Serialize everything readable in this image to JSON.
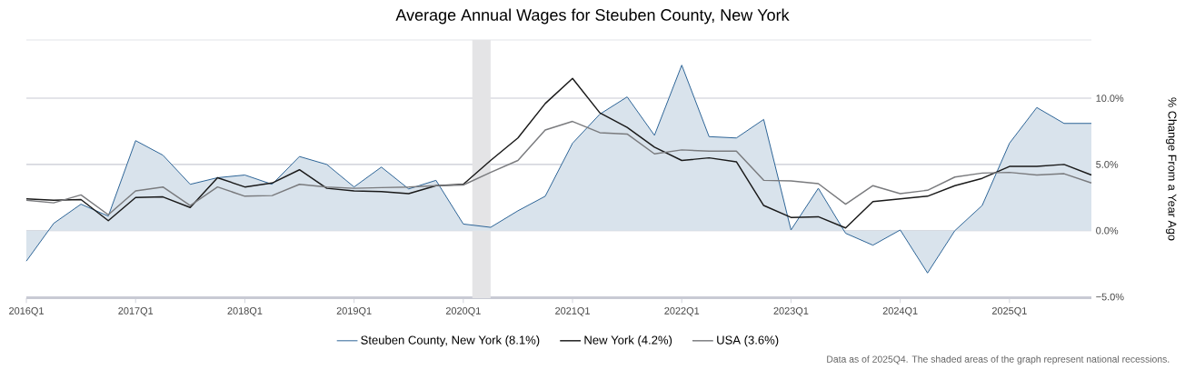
{
  "chart_data": {
    "type": "line",
    "title": "Average Annual Wages for Steuben County, New York",
    "ylabel": "% Change From a Year Ago",
    "categories": [
      "2016Q1",
      null,
      null,
      null,
      "2017Q1",
      null,
      null,
      null,
      "2018Q1",
      null,
      null,
      null,
      "2019Q1",
      null,
      null,
      null,
      "2020Q1",
      null,
      null,
      null,
      "2021Q1",
      null,
      null,
      null,
      "2022Q1",
      null,
      null,
      null,
      "2023Q1",
      null,
      null,
      null,
      "2024Q1",
      null,
      null,
      null,
      "2025Q1",
      null,
      null,
      null
    ],
    "series": [
      {
        "name": "Steuben County, New York (8.1%)",
        "type": "area",
        "color": "#2d6497",
        "values": [
          -2.3,
          0.55,
          2.0,
          1.1,
          6.8,
          5.7,
          3.5,
          4.0,
          4.2,
          3.5,
          5.6,
          5.0,
          3.3,
          4.8,
          3.15,
          3.8,
          0.5,
          0.25,
          1.5,
          2.6,
          6.6,
          8.8,
          10.1,
          7.2,
          12.5,
          7.1,
          7.0,
          8.4,
          0.05,
          3.2,
          -0.2,
          -1.1,
          0.05,
          -3.2,
          0.0,
          1.9,
          6.6,
          9.3,
          8.1,
          8.1
        ]
      },
      {
        "name": "New York (4.2%)",
        "color": "#1a1a1a",
        "values": [
          2.4,
          2.3,
          2.35,
          0.75,
          2.5,
          2.55,
          1.75,
          4.0,
          3.3,
          3.6,
          4.6,
          3.2,
          3.0,
          2.95,
          2.8,
          3.4,
          3.5,
          5.3,
          7.0,
          9.6,
          11.5,
          8.9,
          7.8,
          6.3,
          5.3,
          5.5,
          5.2,
          1.9,
          1.0,
          1.05,
          0.2,
          2.2,
          2.4,
          2.6,
          3.4,
          3.95,
          4.85,
          4.85,
          5.0,
          4.2
        ]
      },
      {
        "name": "USA (3.6%)",
        "color": "#7a7b7e",
        "values": [
          2.3,
          2.1,
          2.7,
          1.2,
          3.0,
          3.3,
          1.9,
          3.3,
          2.6,
          2.65,
          3.5,
          3.3,
          3.2,
          3.25,
          3.3,
          3.4,
          3.45,
          4.4,
          5.3,
          7.6,
          8.25,
          7.4,
          7.3,
          5.8,
          6.1,
          6.0,
          6.0,
          3.8,
          3.75,
          3.55,
          2.0,
          3.4,
          2.8,
          3.05,
          4.05,
          4.35,
          4.4,
          4.2,
          4.3,
          3.6
        ]
      }
    ],
    "ylim": [
      -5.1,
      14.4
    ],
    "yticks": [
      {
        "value": -5,
        "label": "−5.0%"
      },
      {
        "value": 0,
        "label": "0.0%"
      },
      {
        "value": 5,
        "label": "5.0%"
      },
      {
        "value": 10,
        "label": "10.0%"
      }
    ],
    "grid": "y",
    "legend": "bottom",
    "annotations": [
      "Data as of 2025Q4. The shaded areas of the graph represent national recessions."
    ]
  }
}
